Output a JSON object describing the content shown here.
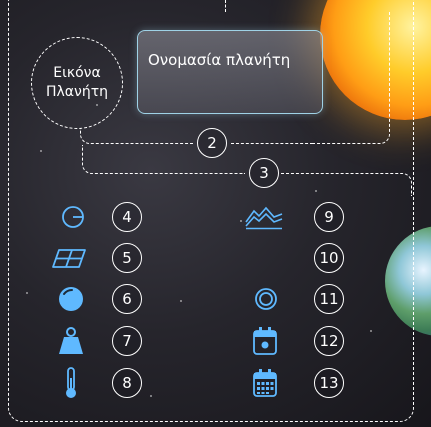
{
  "planet_image_placeholder": {
    "label_line1": "Εικόνα",
    "label_line2": "Πλανήτη"
  },
  "planet_name_field": {
    "label": "Ονομασία πλανήτη"
  },
  "annotations": [
    "2",
    "3",
    "4",
    "5",
    "6",
    "7",
    "8",
    "9",
    "10",
    "11",
    "12",
    "13"
  ],
  "icons": {
    "left": [
      "half-circle-icon",
      "grid-area-icon",
      "sphere-icon",
      "weight-icon",
      "thermometer-icon"
    ],
    "right": [
      "mountains-icon",
      "moon-icon",
      "rings-icon",
      "calendar-day-icon",
      "calendar-icon"
    ]
  },
  "colors": {
    "accent": "#5fb9ff",
    "field_border": "#9fd2e6",
    "background": "#26252c"
  }
}
